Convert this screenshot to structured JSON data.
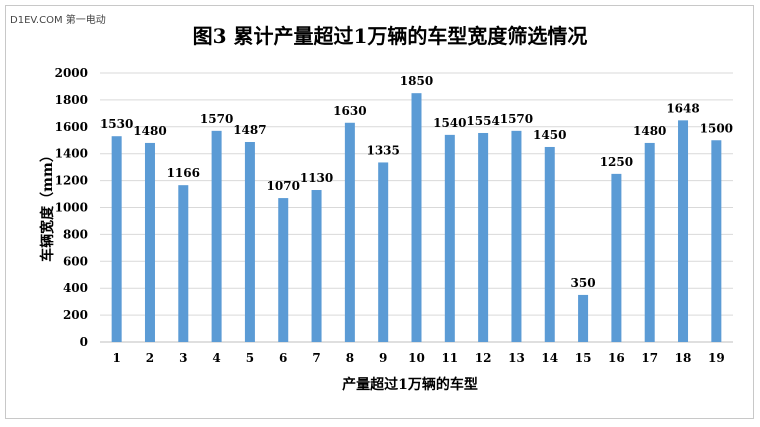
{
  "watermark": "D1EV.COM 第一电动",
  "chart_data": {
    "type": "bar",
    "title": "图3  累计产量超过1万辆的车型宽度筛选情况",
    "xlabel": "产量超过1万辆的车型",
    "ylabel": "车辆宽度（mm）",
    "categories": [
      "1",
      "2",
      "3",
      "4",
      "5",
      "6",
      "7",
      "8",
      "9",
      "10",
      "11",
      "12",
      "13",
      "14",
      "15",
      "16",
      "17",
      "18",
      "19"
    ],
    "values": [
      1530,
      1480,
      1166,
      1570,
      1487,
      1070,
      1130,
      1630,
      1335,
      1850,
      1540,
      1554,
      1570,
      1450,
      350,
      1250,
      1480,
      1648,
      1500
    ],
    "data_labels": [
      "1530",
      "1480",
      "1166",
      "1570",
      "1487",
      "1070",
      "1130",
      "1630",
      "1335",
      "1850",
      "1540",
      "1554",
      "1570",
      "1450",
      "350",
      "1250",
      "1480",
      "1648",
      "1500"
    ],
    "yticks": [
      0,
      200,
      400,
      600,
      800,
      1000,
      1200,
      1400,
      1600,
      1800,
      2000
    ],
    "ylim": [
      0,
      2000
    ],
    "grid": true,
    "legend": "none",
    "bar_color": "#5b9bd5",
    "grid_color": "#d9d9d9"
  }
}
